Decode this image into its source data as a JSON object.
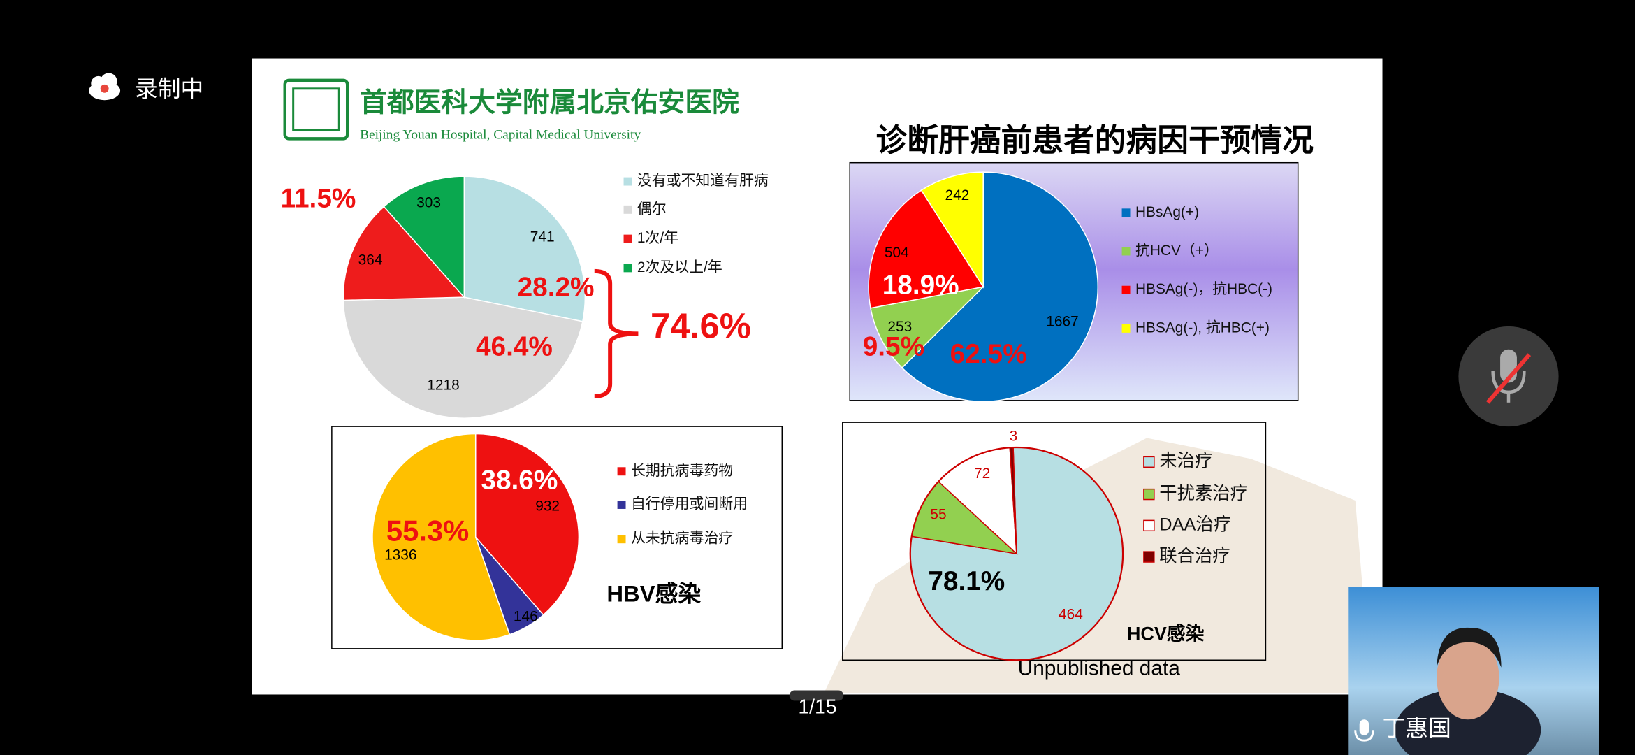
{
  "screen": {
    "recording": "录制中",
    "page_indicator": "1/15",
    "speaker": "丁惠国"
  },
  "slide": {
    "hospital_cn": "首都医科大学附属北京佑安医院",
    "hospital_en": "Beijing Youan Hospital, Capital Medical University",
    "note": "Unpublished data"
  },
  "chart_data": [
    {
      "type": "pie",
      "categories": [
        "没有或不知道有肝病",
        "偶尔",
        "1次/年",
        "2次及以上/年"
      ],
      "values": [
        741,
        1218,
        364,
        303
      ],
      "colors": [
        "#b7dfe3",
        "#d9d9d9",
        "#ee1c1c",
        "#0aa84f"
      ],
      "label_color": "#000000",
      "annotations": [
        "11.5%",
        "28.2%",
        "46.4%",
        "74.6%"
      ]
    },
    {
      "type": "pie",
      "title": "诊断肝癌前患者的病因干预情况",
      "categories": [
        "HBsAg(+)",
        "抗HCV（+）",
        "HBSAg(-)，抗HBC(-)",
        "HBSAg(-), 抗HBC(+)"
      ],
      "values": [
        1667,
        253,
        504,
        242
      ],
      "colors": [
        "#0070c0",
        "#92d050",
        "#ff0000",
        "#ffff00"
      ],
      "label_color": "#000000",
      "annotations": [
        "18.9%",
        "9.5%",
        "62.5%"
      ]
    },
    {
      "type": "pie",
      "title": "HBV感染",
      "categories": [
        "长期抗病毒药物",
        "自行停用或间断用",
        "从未抗病毒治疗"
      ],
      "values": [
        932,
        146,
        1336
      ],
      "colors": [
        "#ee1111",
        "#333399",
        "#ffc000"
      ],
      "label_color": "#000000",
      "annotations": [
        "38.6%",
        "55.3%"
      ]
    },
    {
      "type": "pie",
      "title": "HCV感染",
      "categories": [
        "未治疗",
        "干扰素治疗",
        "DAA治疗",
        "联合治疗"
      ],
      "values": [
        464,
        55,
        72,
        3
      ],
      "colors": [
        "#b7dfe3",
        "#92d050",
        "#ffffff",
        "#7f0000"
      ],
      "edge_color": "#cc0000",
      "label_color": "#cc0000",
      "annotations": [
        "78.1%"
      ]
    }
  ]
}
